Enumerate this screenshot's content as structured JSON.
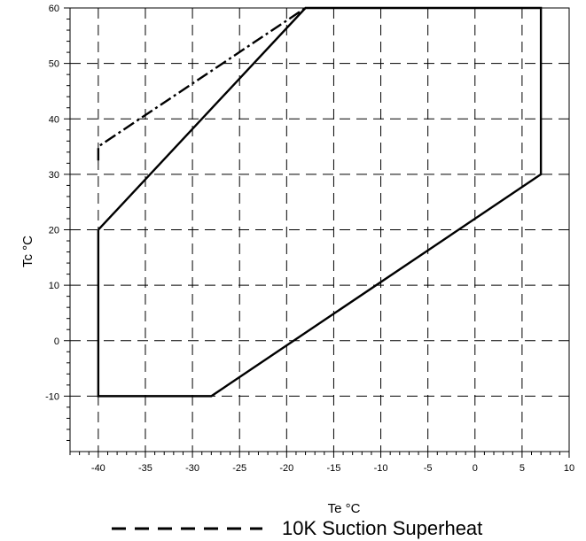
{
  "chart_data": {
    "type": "line",
    "title": "",
    "xlabel": "Te °C",
    "ylabel": "Tc °C",
    "xlim": [
      -43,
      10
    ],
    "ylim": [
      -20,
      60
    ],
    "xticks": [
      -40,
      -35,
      -30,
      -25,
      -20,
      -15,
      -10,
      -5,
      0,
      5,
      10
    ],
    "yticks": [
      -10,
      0,
      10,
      20,
      30,
      40,
      50,
      60
    ],
    "xtick_labels": [
      "-40",
      "-35",
      "-30",
      "-25",
      "-20",
      "-15",
      "-10",
      "-5",
      "0",
      "5",
      "10"
    ],
    "ytick_labels": [
      "-10",
      "0",
      "10",
      "20",
      "30",
      "40",
      "50",
      "60"
    ],
    "grid": true,
    "grid_style": "dashed",
    "series": [
      {
        "style": "solid",
        "x": [
          -40,
          -40,
          -28,
          7,
          7,
          -18,
          -40
        ],
        "y": [
          20,
          -10,
          -10,
          30,
          60,
          60,
          20
        ]
      },
      {
        "style": "dashed",
        "x": [
          -40,
          -40,
          -18
        ],
        "y": [
          32.5,
          35,
          60
        ]
      }
    ],
    "legend": {
      "position": "bottom",
      "entries": [
        {
          "label": "10K Suction Superheat",
          "style": "dashed"
        }
      ]
    }
  }
}
